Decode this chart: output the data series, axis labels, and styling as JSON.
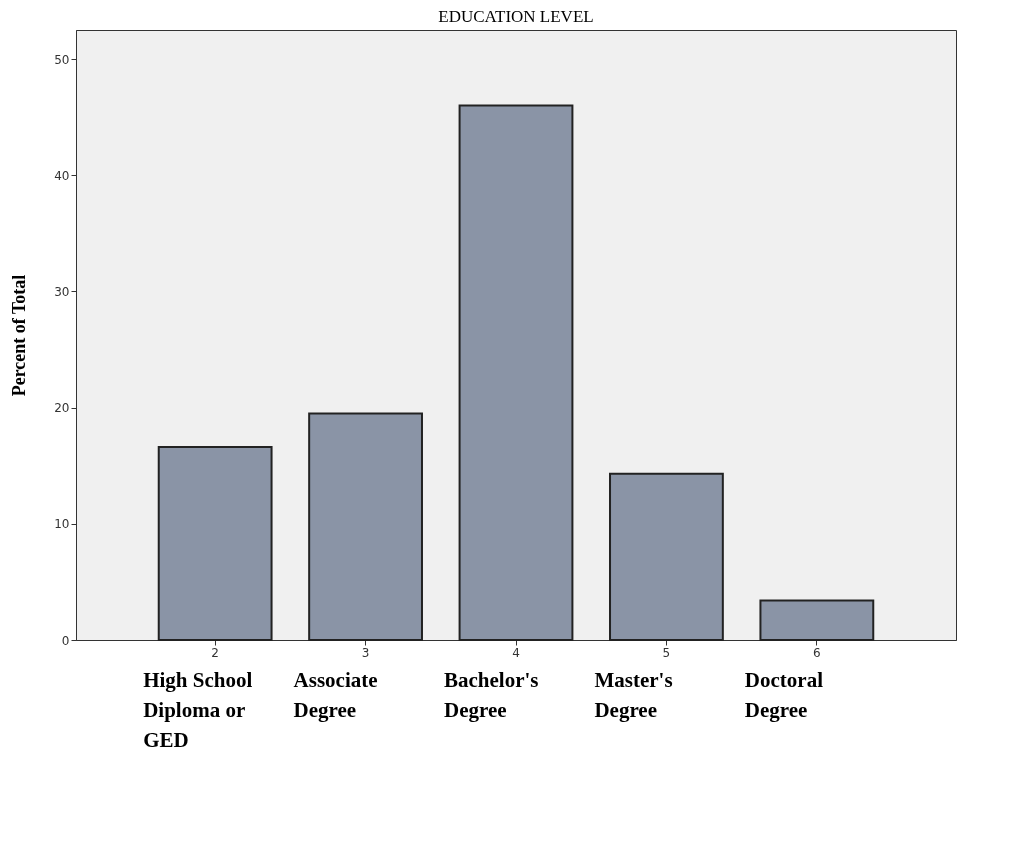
{
  "chart_data": {
    "type": "bar",
    "title": "EDUCATION LEVEL",
    "ylabel": "Percent of Total",
    "categories": [
      "2",
      "3",
      "4",
      "5",
      "6"
    ],
    "values": [
      16.6,
      19.5,
      46.0,
      14.3,
      3.4
    ],
    "color": "#8a94a6",
    "ylim": [
      0,
      52.5
    ],
    "yticks": [
      0,
      10,
      20,
      30,
      40,
      50
    ],
    "grid": false,
    "annotations": [
      "High School Diploma or GED",
      "Associate Degree",
      "Bachelor's Degree",
      "Master's Degree",
      "Doctoral Degree"
    ]
  }
}
